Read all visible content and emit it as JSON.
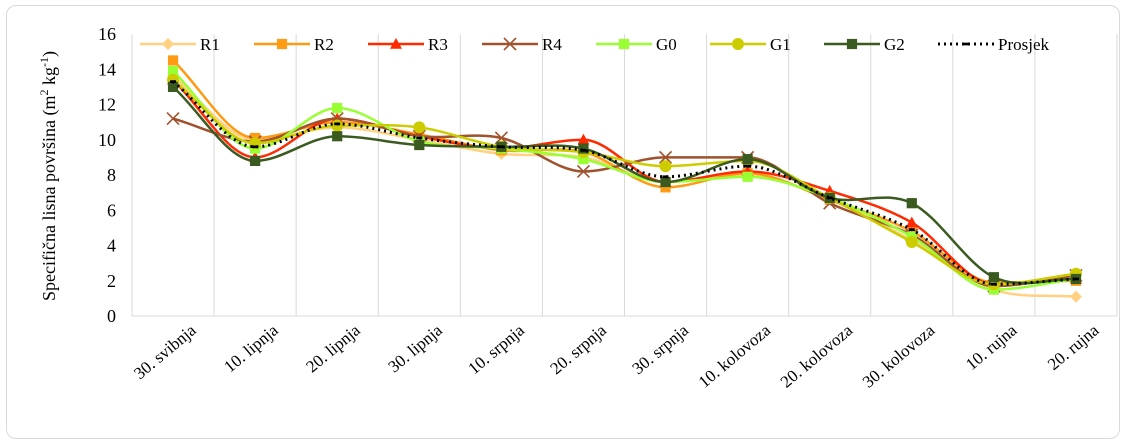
{
  "chart_data": {
    "type": "line",
    "ylabel": "Specifična lisna površina (m² kg⁻¹)",
    "ylabel_parts": {
      "main": "Specifična lisna površina (m",
      "sup1": "2",
      "mid": " kg",
      "sup2": "-1",
      "end": ")"
    },
    "xlabel": "",
    "ylim": [
      0,
      16
    ],
    "yticks": [
      "0",
      "2",
      "4",
      "6",
      "8",
      "10",
      "12",
      "14",
      "16"
    ],
    "grid": "vertical",
    "legend_position": "top",
    "categories": [
      "30. svibnja",
      "10. lipnja",
      "20. lipnja",
      "30. lipnja",
      "10. srpnja",
      "20. srpnja",
      "30. srpnja",
      "10. kolovoza",
      "20. kolovoza",
      "30. kolovoza",
      "10. rujna",
      "20. rujna"
    ],
    "series": [
      {
        "name": "R1",
        "color": "#ffd180",
        "marker": "diamond",
        "values": [
          13.6,
          10.0,
          10.7,
          10.0,
          9.2,
          9.0,
          7.6,
          8.0,
          6.6,
          4.3,
          1.5,
          1.1
        ]
      },
      {
        "name": "R2",
        "color": "#ff9a14",
        "marker": "square",
        "values": [
          14.5,
          10.1,
          11.0,
          10.3,
          9.4,
          9.3,
          7.3,
          8.1,
          6.6,
          4.8,
          1.9,
          2.0
        ]
      },
      {
        "name": "R3",
        "color": "#ff2a00",
        "marker": "triangle",
        "values": [
          13.4,
          9.0,
          11.2,
          10.2,
          9.5,
          10.0,
          7.6,
          8.2,
          7.1,
          5.3,
          1.8,
          2.1
        ]
      },
      {
        "name": "R4",
        "color": "#a0522d",
        "marker": "x",
        "values": [
          11.2,
          9.9,
          11.2,
          10.2,
          10.1,
          8.2,
          9.0,
          9.0,
          6.4,
          4.6,
          1.7,
          2.3
        ]
      },
      {
        "name": "G0",
        "color": "#99ff33",
        "marker": "square",
        "values": [
          13.9,
          9.5,
          11.8,
          9.9,
          9.5,
          8.9,
          7.6,
          7.9,
          6.7,
          4.5,
          1.5,
          2.1
        ]
      },
      {
        "name": "G1",
        "color": "#cccc00",
        "marker": "circle",
        "values": [
          13.4,
          9.8,
          10.8,
          10.7,
          9.6,
          9.3,
          8.5,
          8.8,
          6.7,
          4.2,
          1.8,
          2.4
        ]
      },
      {
        "name": "G2",
        "color": "#3a5a1f",
        "marker": "square",
        "values": [
          13.0,
          8.8,
          10.2,
          9.7,
          9.6,
          9.5,
          7.6,
          8.9,
          6.7,
          6.4,
          2.2,
          2.1
        ]
      },
      {
        "name": "Prosjek",
        "color": "#000000",
        "marker": "dash",
        "dashed": true,
        "values": [
          13.3,
          9.6,
          10.9,
          10.1,
          9.6,
          9.4,
          7.9,
          8.5,
          6.7,
          4.9,
          1.8,
          2.1
        ]
      }
    ]
  }
}
